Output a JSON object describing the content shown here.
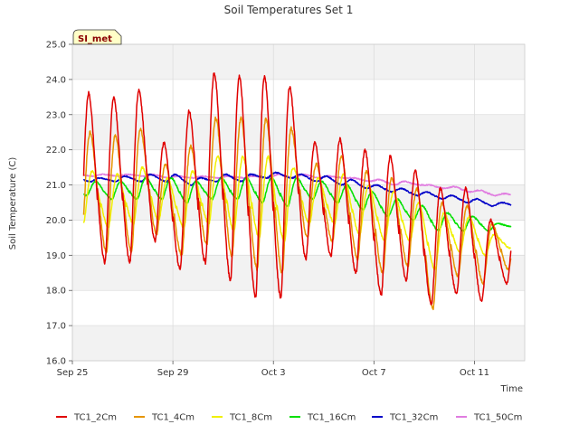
{
  "chart_data": {
    "type": "line",
    "title": "Soil Temperatures Set 1",
    "xlabel": "Time",
    "ylabel": "Soil Temperature (C)",
    "ylim": [
      16.0,
      25.0
    ],
    "xlim": [
      0,
      18
    ],
    "y_ticks": [
      16.0,
      17.0,
      18.0,
      19.0,
      20.0,
      21.0,
      22.0,
      23.0,
      24.0,
      25.0
    ],
    "y_tick_labels": [
      "16.0",
      "17.0",
      "18.0",
      "19.0",
      "20.0",
      "21.0",
      "22.0",
      "23.0",
      "24.0",
      "25.0"
    ],
    "x_ticks": [
      0,
      4,
      8,
      12,
      16
    ],
    "x_tick_labels": [
      "Sep 25",
      "Sep 29",
      "Oct 3",
      "Oct 7",
      "Oct 11"
    ],
    "badge": "SI_met",
    "grid": true,
    "legend_position": "bottom",
    "series": [
      {
        "name": "TC1_2Cm",
        "color": "#e00000",
        "min": [
          18.9,
          18.8,
          18.8,
          19.4,
          18.6,
          18.8,
          18.3,
          17.8,
          17.8,
          18.9,
          19.0,
          18.5,
          17.9,
          18.3,
          17.6,
          17.9,
          17.7,
          18.2
        ],
        "max": [
          23.6,
          23.5,
          23.7,
          22.2,
          23.1,
          24.2,
          24.1,
          24.1,
          23.8,
          22.2,
          22.3,
          22.0,
          21.8,
          21.4,
          20.9,
          20.9,
          20.0
        ]
      },
      {
        "name": "TC1_4Cm",
        "color": "#e69500",
        "min": [
          19.3,
          19.1,
          19.1,
          19.6,
          19.0,
          19.3,
          19.0,
          18.6,
          18.5,
          19.5,
          19.4,
          18.9,
          18.5,
          18.7,
          17.5,
          18.4,
          18.2,
          18.6
        ],
        "max": [
          22.5,
          22.4,
          22.6,
          21.6,
          22.1,
          22.9,
          22.9,
          22.9,
          22.6,
          21.6,
          21.8,
          21.4,
          21.2,
          20.9,
          20.5,
          20.4,
          19.9
        ]
      },
      {
        "name": "TC1_8Cm",
        "color": "#f0f000",
        "min": [
          19.9,
          19.8,
          19.9,
          20.0,
          19.8,
          19.9,
          19.7,
          19.5,
          19.4,
          19.9,
          19.9,
          19.6,
          19.4,
          19.4,
          18.6,
          19.1,
          19.0,
          19.2
        ],
        "max": [
          21.4,
          21.3,
          21.5,
          21.2,
          21.4,
          21.8,
          21.8,
          21.8,
          21.5,
          21.2,
          21.3,
          21.0,
          20.8,
          20.5,
          20.2,
          20.1,
          19.6
        ]
      },
      {
        "name": "TC1_16Cm",
        "color": "#00e000",
        "min": [
          20.7,
          20.6,
          20.6,
          20.6,
          20.5,
          20.6,
          20.6,
          20.5,
          20.4,
          20.6,
          20.5,
          20.3,
          20.1,
          20.0,
          19.7,
          19.7,
          19.7,
          19.8
        ],
        "max": [
          21.1,
          21.1,
          21.2,
          21.2,
          21.1,
          21.2,
          21.2,
          21.2,
          21.2,
          21.1,
          21.0,
          20.8,
          20.6,
          20.4,
          20.2,
          20.1,
          19.9
        ]
      },
      {
        "name": "TC1_32Cm",
        "color": "#0000c8",
        "min": [
          21.1,
          21.1,
          21.1,
          21.1,
          21.0,
          21.1,
          21.1,
          21.2,
          21.2,
          21.1,
          21.0,
          20.9,
          20.8,
          20.7,
          20.6,
          20.5,
          20.4,
          20.4
        ],
        "max": [
          21.2,
          21.25,
          21.3,
          21.3,
          21.2,
          21.3,
          21.3,
          21.35,
          21.3,
          21.25,
          21.15,
          21.0,
          20.9,
          20.8,
          20.7,
          20.6,
          20.5
        ]
      },
      {
        "name": "TC1_50Cm",
        "color": "#e07ce0",
        "min": [
          21.25,
          21.25,
          21.25,
          21.2,
          21.2,
          21.2,
          21.2,
          21.2,
          21.2,
          21.2,
          21.2,
          21.1,
          21.0,
          21.0,
          20.9,
          20.8,
          20.7,
          20.7
        ],
        "max": [
          21.3,
          21.3,
          21.3,
          21.25,
          21.25,
          21.25,
          21.25,
          21.3,
          21.3,
          21.25,
          21.2,
          21.15,
          21.1,
          21.0,
          20.95,
          20.85,
          20.75
        ]
      }
    ]
  }
}
